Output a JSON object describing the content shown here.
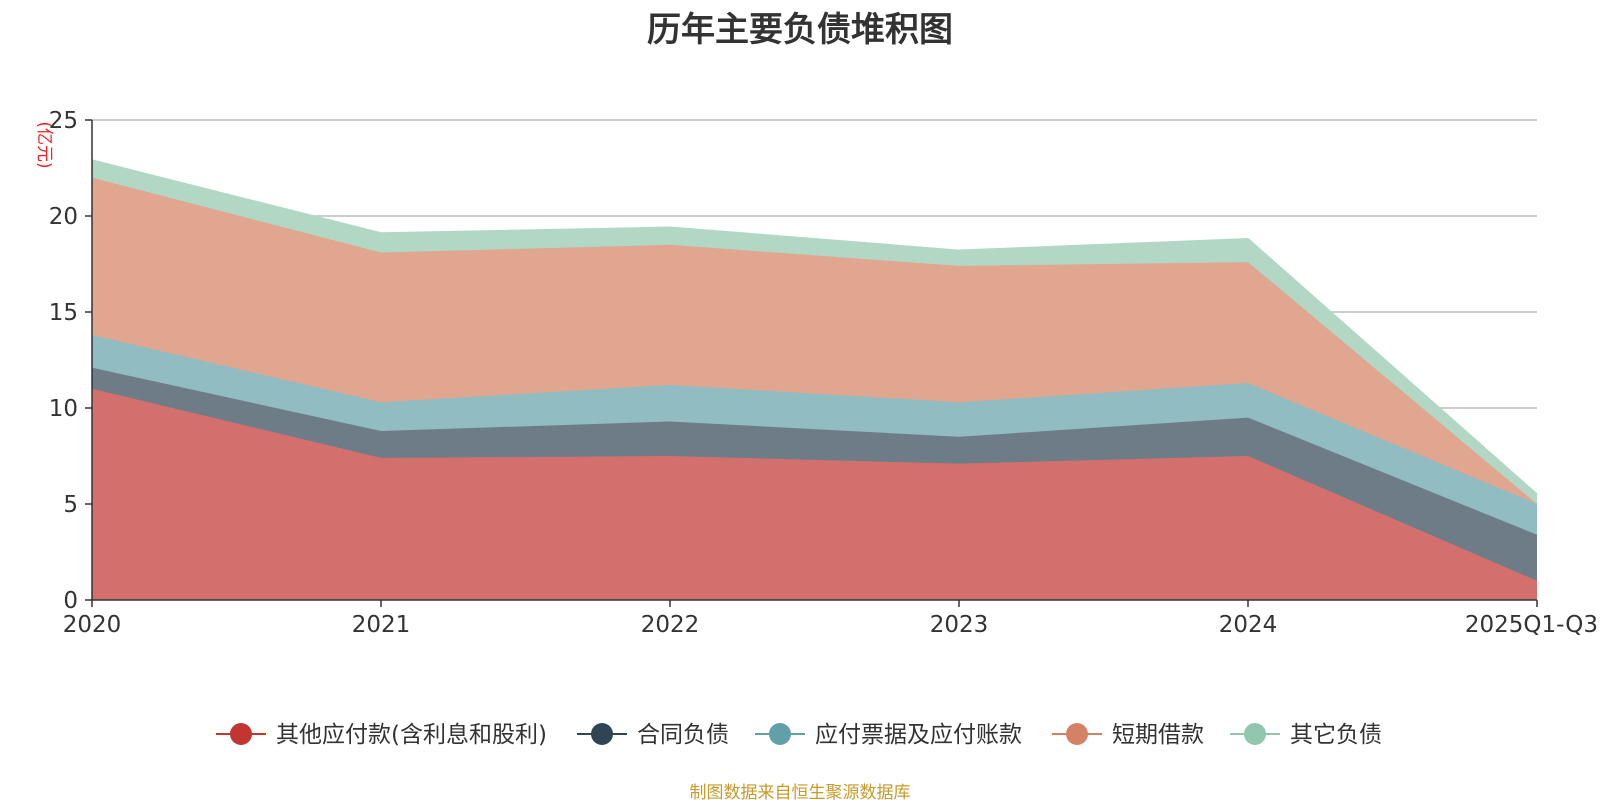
{
  "chart_data": {
    "type": "area",
    "stacked": true,
    "title": "历年主要负债堆积图",
    "unit_label": "(亿元)",
    "categories": [
      "2020",
      "2021",
      "2022",
      "2023",
      "2024",
      "2025Q1-Q3"
    ],
    "ylim": [
      0,
      25
    ],
    "yticks": [
      0,
      5,
      10,
      15,
      20,
      25
    ],
    "grid": true,
    "legend_position": "bottom",
    "series": [
      {
        "name": "其他应付款(含利息和股利)",
        "color": "#c23531",
        "fill": "#d3706d",
        "values": [
          11.0,
          7.4,
          7.5,
          7.1,
          7.5,
          1.0
        ]
      },
      {
        "name": "合同负债",
        "color": "#2f4554",
        "fill": "#6e7c88",
        "values": [
          1.1,
          1.4,
          1.8,
          1.4,
          2.0,
          2.4
        ]
      },
      {
        "name": "应付票据及应付账款",
        "color": "#61a0a8",
        "fill": "#91bcc1",
        "values": [
          1.7,
          1.5,
          1.9,
          1.8,
          1.8,
          1.6
        ]
      },
      {
        "name": "短期借款",
        "color": "#d48265",
        "fill": "#e0a690",
        "values": [
          8.2,
          7.8,
          7.3,
          7.1,
          6.3,
          0.0
        ]
      },
      {
        "name": "其它负债",
        "color": "#91c7ae",
        "fill": "#b2d8c5",
        "values": [
          0.9,
          1.0,
          0.9,
          0.8,
          1.2,
          0.5
        ]
      }
    ],
    "source": "制图数据来自恒生聚源数据库"
  }
}
